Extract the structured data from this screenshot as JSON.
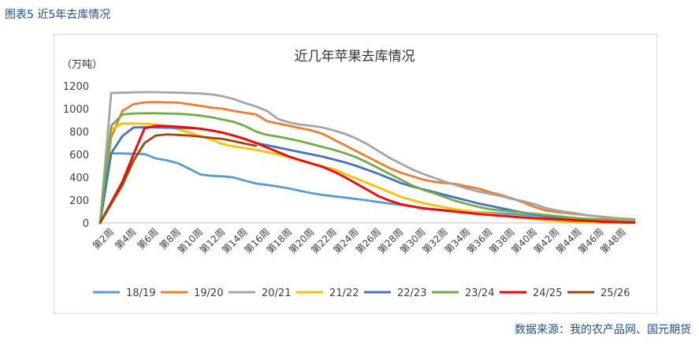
{
  "header": {
    "figure_caption": "图表5  近5年去库情况"
  },
  "footer": {
    "source": "数据来源：我的农产品网、国元期货"
  },
  "chart_data": {
    "type": "line",
    "title": "近几年苹果去库情况",
    "ylabel": "（万吨）",
    "xlabel": "",
    "ylim": [
      0,
      1200
    ],
    "yticks": [
      0,
      200,
      400,
      600,
      800,
      1000,
      1200
    ],
    "grid": false,
    "legend": "bottom",
    "x": [
      1,
      2,
      3,
      4,
      5,
      6,
      7,
      8,
      9,
      10,
      11,
      12,
      13,
      14,
      15,
      16,
      17,
      18,
      19,
      20,
      21,
      22,
      23,
      24,
      25,
      26,
      27,
      28,
      29,
      30,
      31,
      32,
      33,
      34,
      35,
      36,
      37,
      38,
      39,
      40,
      41,
      42,
      43,
      44,
      45,
      46,
      47,
      48,
      49
    ],
    "xtick_labels": [
      "第2周",
      "第4周",
      "第6周",
      "第8周",
      "第10周",
      "第12周",
      "第14周",
      "第16周",
      "第18周",
      "第20周",
      "第22周",
      "第24周",
      "第26周",
      "第28周",
      "第30周",
      "第32周",
      "第34周",
      "第36周",
      "第38周",
      "第40周",
      "第42周",
      "第44周",
      "第46周",
      "第48周"
    ],
    "series": [
      {
        "name": "18/19",
        "color": "#5b9bd5",
        "values": [
          0,
          610,
          608,
          605,
          603,
          565,
          548,
          522,
          475,
          425,
          412,
          408,
          398,
          370,
          345,
          333,
          318,
          302,
          280,
          260,
          245,
          233,
          222,
          210,
          197,
          183,
          170,
          157,
          145,
          122,
          120,
          112,
          104,
          98,
          93,
          88,
          83,
          78,
          70,
          64,
          57,
          50,
          43,
          37,
          31,
          26,
          22,
          18,
          null
        ]
      },
      {
        "name": "19/20",
        "color": "#ed7d31",
        "values": [
          0,
          750,
          980,
          1040,
          1055,
          1058,
          1055,
          1053,
          1040,
          1025,
          1010,
          1000,
          980,
          965,
          950,
          890,
          870,
          850,
          830,
          810,
          780,
          730,
          680,
          630,
          580,
          530,
          480,
          440,
          410,
          380,
          360,
          350,
          340,
          320,
          300,
          270,
          245,
          215,
          180,
          140,
          110,
          95,
          85,
          75,
          65,
          55,
          45,
          38,
          32
        ]
      },
      {
        "name": "20/21",
        "color": "#a5a5a5",
        "values": [
          0,
          1138,
          1140,
          1143,
          1145,
          1145,
          1142,
          1140,
          1137,
          1133,
          1125,
          1110,
          1085,
          1050,
          1020,
          980,
          910,
          880,
          860,
          850,
          835,
          810,
          780,
          740,
          690,
          630,
          570,
          520,
          470,
          430,
          395,
          360,
          330,
          300,
          275,
          255,
          235,
          210,
          190,
          165,
          130,
          110,
          95,
          80,
          65,
          50,
          40,
          32,
          25
        ]
      },
      {
        "name": "21/22",
        "color": "#ffc000",
        "values": [
          0,
          820,
          870,
          870,
          868,
          862,
          845,
          820,
          790,
          760,
          730,
          690,
          670,
          655,
          640,
          620,
          600,
          575,
          545,
          520,
          495,
          470,
          430,
          390,
          350,
          310,
          270,
          230,
          200,
          175,
          155,
          135,
          118,
          105,
          92,
          80,
          68,
          56,
          45,
          35,
          25,
          18,
          12,
          8,
          5,
          3,
          2,
          1,
          1
        ]
      },
      {
        "name": "22/23",
        "color": "#4472c4",
        "values": [
          0,
          610,
          760,
          835,
          838,
          836,
          834,
          832,
          830,
          825,
          810,
          790,
          765,
          735,
          700,
          680,
          660,
          640,
          620,
          600,
          580,
          555,
          530,
          500,
          465,
          430,
          390,
          350,
          320,
          295,
          270,
          245,
          220,
          195,
          170,
          150,
          130,
          110,
          90,
          75,
          60,
          48,
          38,
          30,
          22,
          15,
          10,
          6,
          3
        ]
      },
      {
        "name": "23/24",
        "color": "#70ad47",
        "values": [
          0,
          850,
          950,
          958,
          960,
          960,
          958,
          955,
          950,
          940,
          925,
          905,
          885,
          850,
          800,
          770,
          755,
          735,
          715,
          690,
          665,
          640,
          610,
          575,
          530,
          480,
          430,
          380,
          330,
          290,
          260,
          225,
          190,
          165,
          140,
          120,
          110,
          100,
          90,
          80,
          70,
          60,
          50,
          40,
          35,
          30,
          25,
          20,
          15
        ]
      },
      {
        "name": "24/25",
        "color": "#ff0000",
        "values": [
          0,
          180,
          360,
          600,
          830,
          850,
          848,
          842,
          835,
          825,
          810,
          790,
          765,
          735,
          700,
          660,
          620,
          580,
          550,
          520,
          490,
          450,
          400,
          345,
          290,
          235,
          195,
          165,
          145,
          130,
          118,
          108,
          98,
          88,
          78,
          70,
          62,
          55,
          48,
          42,
          37,
          32,
          27,
          22,
          17,
          12,
          8,
          5,
          3
        ]
      },
      {
        "name": "25/26",
        "color": "#9e480e",
        "values": [
          0,
          165,
          330,
          545,
          700,
          765,
          775,
          770,
          765,
          755,
          745,
          735,
          715,
          695,
          675,
          null,
          null,
          null,
          null,
          null,
          null,
          null,
          null,
          null,
          null,
          null,
          null,
          null,
          null,
          null,
          null,
          null,
          null,
          null,
          null,
          null,
          null,
          null,
          null,
          null,
          null,
          null,
          null,
          null,
          null,
          null,
          null,
          null,
          null
        ]
      }
    ]
  }
}
